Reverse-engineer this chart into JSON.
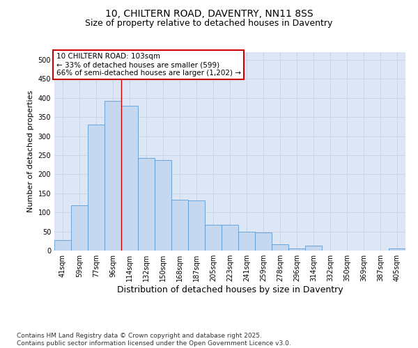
{
  "title_line1": "10, CHILTERN ROAD, DAVENTRY, NN11 8SS",
  "title_line2": "Size of property relative to detached houses in Daventry",
  "xlabel": "Distribution of detached houses by size in Daventry",
  "ylabel": "Number of detached properties",
  "categories": [
    "41sqm",
    "59sqm",
    "77sqm",
    "96sqm",
    "114sqm",
    "132sqm",
    "150sqm",
    "168sqm",
    "187sqm",
    "205sqm",
    "223sqm",
    "241sqm",
    "259sqm",
    "278sqm",
    "296sqm",
    "314sqm",
    "332sqm",
    "350sqm",
    "369sqm",
    "387sqm",
    "405sqm"
  ],
  "values": [
    28,
    118,
    330,
    393,
    380,
    243,
    238,
    133,
    132,
    68,
    68,
    50,
    47,
    16,
    6,
    12,
    0,
    0,
    0,
    0,
    5
  ],
  "bar_color": "#c5d8f0",
  "bar_edge_color": "#5b9bd5",
  "grid_color": "#c8d4e8",
  "bg_color": "#dce6f5",
  "fig_bg_color": "#ffffff",
  "annotation_text_line1": "10 CHILTERN ROAD: 103sqm",
  "annotation_text_line2": "← 33% of detached houses are smaller (599)",
  "annotation_text_line3": "66% of semi-detached houses are larger (1,202) →",
  "annotation_box_facecolor": "#ffffff",
  "annotation_box_edgecolor": "#cc0000",
  "vline_color": "#cc0000",
  "vline_x": 3.5,
  "ylim": [
    0,
    520
  ],
  "yticks": [
    0,
    50,
    100,
    150,
    200,
    250,
    300,
    350,
    400,
    450,
    500
  ],
  "title_fontsize": 10,
  "subtitle_fontsize": 9,
  "ylabel_fontsize": 8,
  "xlabel_fontsize": 9,
  "tick_fontsize": 7,
  "annot_fontsize": 7.5,
  "footer_fontsize": 6.5,
  "footer_line1": "Contains HM Land Registry data © Crown copyright and database right 2025.",
  "footer_line2": "Contains public sector information licensed under the Open Government Licence v3.0."
}
